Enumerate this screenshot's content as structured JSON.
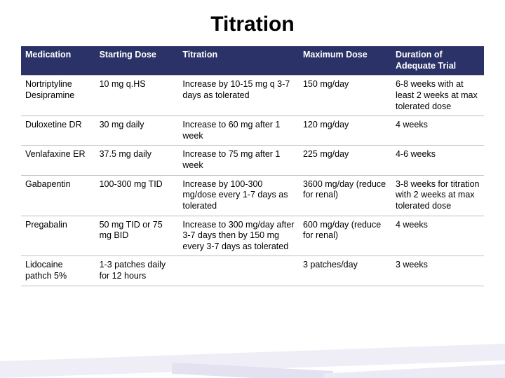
{
  "title": "Titration",
  "table": {
    "header_bg": "#2b3267",
    "header_fg": "#ffffff",
    "border_color": "#bfbfbf",
    "font_size_pt": 12.5,
    "col_widths_pct": [
      16,
      18,
      26,
      20,
      20
    ],
    "columns": [
      "Medication",
      "Starting Dose",
      "Titration",
      "Maximum Dose",
      "Duration of Adequate Trial"
    ],
    "rows": [
      {
        "medication": "Nortriptyline Desipramine",
        "starting": "10 mg q.HS",
        "titration": "Increase by 10-15 mg q 3-7 days as tolerated",
        "max": "150 mg/day",
        "duration": "6-8 weeks with at least 2 weeks at max tolerated dose"
      },
      {
        "medication": "Duloxetine DR",
        "starting": "30 mg daily",
        "titration": "Increase to 60 mg after 1 week",
        "max": "120 mg/day",
        "duration": "4 weeks"
      },
      {
        "medication": "Venlafaxine ER",
        "starting": "37.5 mg daily",
        "titration": "Increase to 75 mg after 1 week",
        "max": "225 mg/day",
        "duration": "4-6 weeks"
      },
      {
        "medication": "Gabapentin",
        "starting": "100-300 mg TID",
        "titration": "Increase by 100-300 mg/dose every 1-7 days as tolerated",
        "max": "3600 mg/day (reduce for renal)",
        "duration": "3-8 weeks for titration with 2 weeks at max tolerated dose"
      },
      {
        "medication": "Pregabalin",
        "starting": "50 mg TID or 75 mg BID",
        "titration": "Increase to 300 mg/day after 3-7 days then by 150 mg every 3-7 days as tolerated",
        "max": "600 mg/day (reduce for renal)",
        "duration": "4 weeks"
      },
      {
        "medication": "Lidocaine pathch 5%",
        "starting": "1-3 patches daily for 12 hours",
        "titration": "",
        "max": "3 patches/day",
        "duration": "3 weeks"
      }
    ]
  },
  "background_color": "#ffffff",
  "title_fontsize": 30,
  "title_color": "#000000"
}
